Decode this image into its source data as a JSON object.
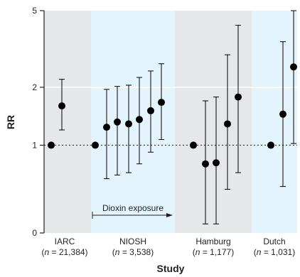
{
  "chart_data": {
    "type": "scatter",
    "ylabel": "RR",
    "xlabel": "Study",
    "y_scale": "log",
    "ylim": [
      0.35,
      5
    ],
    "y_ticks": [
      {
        "value": 0.35,
        "label": "0"
      },
      {
        "value": 1,
        "label": "1"
      },
      {
        "value": 2,
        "label": "2"
      },
      {
        "value": 5,
        "label": "5"
      }
    ],
    "reference_line": {
      "value": 1,
      "style": "dotted"
    },
    "annotation": {
      "text": "Dioxin exposure",
      "applies_to": "NIOSH"
    },
    "groups": [
      {
        "name": "IARC",
        "n_label": "n",
        "n_value": "21,384",
        "shade": "gray",
        "points": [
          {
            "rr": 1.0
          },
          {
            "rr": 1.6,
            "lower": 1.2,
            "upper": 2.2
          }
        ]
      },
      {
        "name": "NIOSH",
        "n_label": "n",
        "n_value": "3,538",
        "shade": "blue",
        "points": [
          {
            "rr": 1.0
          },
          {
            "rr": 1.24,
            "lower": 0.67,
            "upper": 1.95
          },
          {
            "rr": 1.32,
            "lower": 0.7,
            "upper": 2.02
          },
          {
            "rr": 1.29,
            "lower": 0.72,
            "upper": 2.05
          },
          {
            "rr": 1.36,
            "lower": 0.8,
            "upper": 2.25
          },
          {
            "rr": 1.51,
            "lower": 0.92,
            "upper": 2.43
          },
          {
            "rr": 1.67,
            "lower": 1.07,
            "upper": 2.65
          }
        ]
      },
      {
        "name": "Hamburg",
        "n_label": "n",
        "n_value": "1,177",
        "shade": "gray",
        "points": [
          {
            "rr": 1.0
          },
          {
            "rr": 0.8,
            "lower": 0.39,
            "upper": 1.7
          },
          {
            "rr": 0.81,
            "lower": 0.39,
            "upper": 1.78
          },
          {
            "rr": 1.29,
            "lower": 0.59,
            "upper": 2.95
          },
          {
            "rr": 1.78,
            "lower": 0.72,
            "upper": 4.2
          }
        ]
      },
      {
        "name": "Dutch",
        "n_label": "n",
        "n_value": "1,031",
        "shade": "blue",
        "points": [
          {
            "rr": 1.0
          },
          {
            "rr": 1.45,
            "lower": 0.61,
            "upper": 3.45
          },
          {
            "rr": 2.55,
            "lower": 1.02,
            "upper": 5.0
          }
        ]
      }
    ],
    "colors": {
      "gray_band": "#e6e7e8",
      "blue_band": "#e3f4fc",
      "marker": "#000000",
      "axis": "#231f20"
    }
  }
}
